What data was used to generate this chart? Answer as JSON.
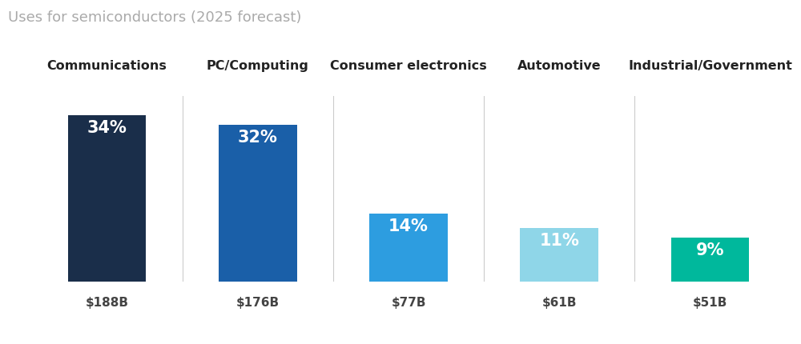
{
  "title": "Uses for semiconductors (2025 forecast)",
  "categories": [
    "Communications",
    "PC/Computing",
    "Consumer electronics",
    "Automotive",
    "Industrial/Government"
  ],
  "values": [
    34,
    32,
    14,
    11,
    9
  ],
  "dollar_labels": [
    "$188B",
    "$176B",
    "$77B",
    "$61B",
    "$51B"
  ],
  "percent_labels": [
    "34%",
    "32%",
    "14%",
    "11%",
    "9%"
  ],
  "bar_colors": [
    "#1a2e4a",
    "#1a5fa8",
    "#2d9de0",
    "#8fd6e8",
    "#00b89c"
  ],
  "background_color": "#ffffff",
  "title_color": "#aaaaaa",
  "category_color": "#222222",
  "dollar_color": "#444444",
  "percent_text_color": "#ffffff",
  "divider_color": "#cccccc",
  "title_fontsize": 13,
  "category_fontsize": 11.5,
  "percent_fontsize": 15,
  "dollar_fontsize": 11,
  "bar_width": 0.52,
  "ylim": [
    0,
    38
  ],
  "xlim": [
    -0.55,
    4.55
  ]
}
